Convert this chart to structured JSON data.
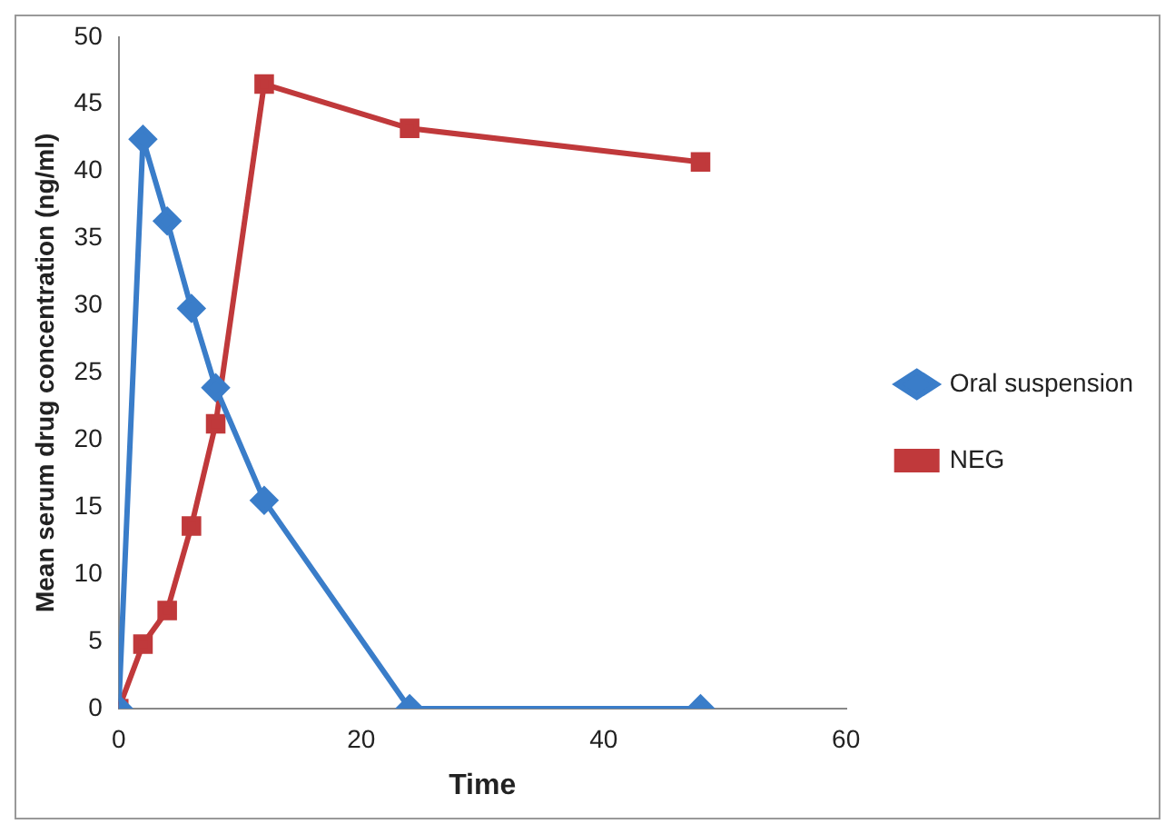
{
  "chart_data": {
    "type": "line",
    "xlabel": "Time",
    "ylabel": "Mean serum drug concentration (ng/ml)",
    "xlim": [
      0,
      60
    ],
    "xticks": [
      0,
      20,
      40,
      60
    ],
    "ylim": [
      0,
      50
    ],
    "yticks": [
      0,
      5,
      10,
      15,
      20,
      25,
      30,
      35,
      40,
      45,
      50
    ],
    "grid": false,
    "legend": "right",
    "line_style": "solid",
    "series": [
      {
        "name": "Oral suspension",
        "color": "#3a7dc9",
        "marker": "diamond",
        "x": [
          0,
          2,
          4,
          6,
          8,
          12,
          24,
          48
        ],
        "values": [
          0,
          42.4,
          36.3,
          29.8,
          23.9,
          15.5,
          0,
          0
        ]
      },
      {
        "name": "NEG",
        "color": "#c0393b",
        "marker": "square",
        "x": [
          0,
          2,
          4,
          6,
          8,
          12,
          24,
          48
        ],
        "values": [
          0,
          4.8,
          7.3,
          13.6,
          21.2,
          46.5,
          43.2,
          40.7
        ]
      }
    ]
  }
}
